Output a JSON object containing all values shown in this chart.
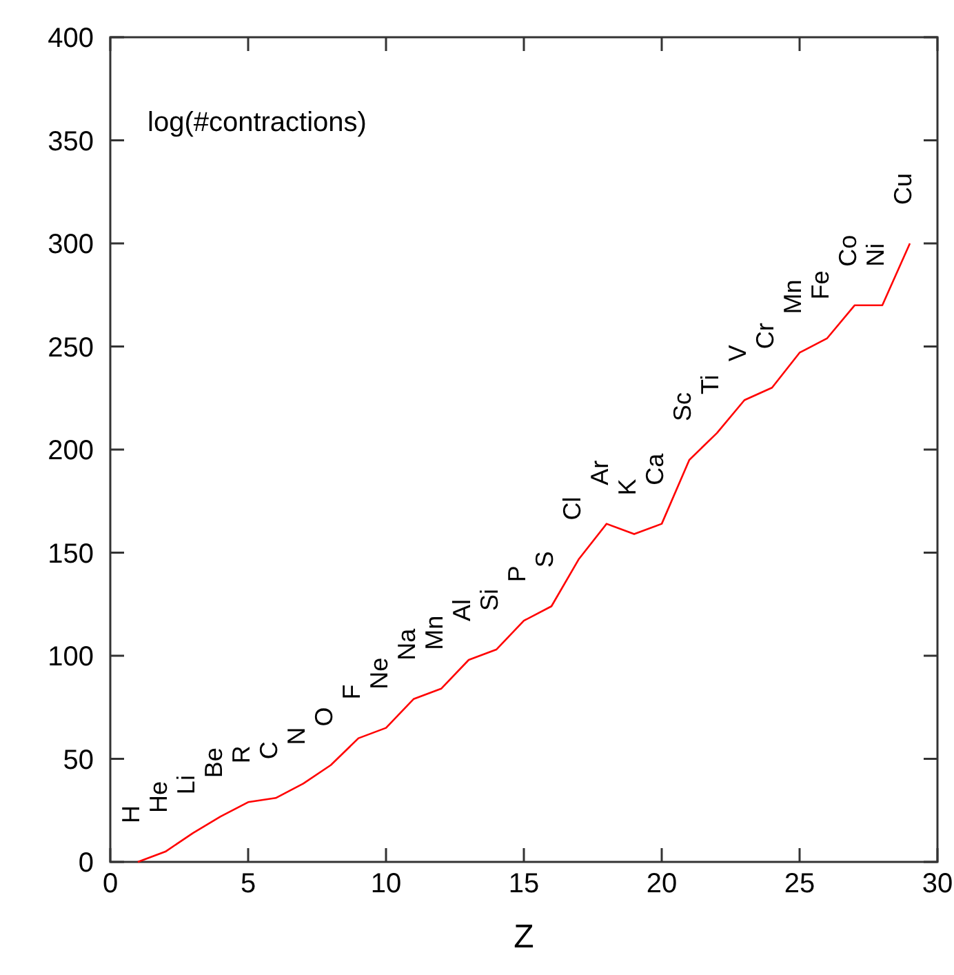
{
  "chart_data": {
    "type": "line",
    "ylabel": "log(#contractions)",
    "xlabel": "Z",
    "x": [
      1,
      2,
      3,
      4,
      5,
      6,
      7,
      8,
      9,
      10,
      11,
      12,
      13,
      14,
      15,
      16,
      17,
      18,
      19,
      20,
      21,
      22,
      23,
      24,
      25,
      26,
      27,
      28,
      29
    ],
    "series": [
      {
        "color": "#ff0000",
        "values": [
          0,
          5,
          14,
          22,
          29,
          31,
          38,
          47,
          60,
          65,
          79,
          84,
          98,
          103,
          117,
          124,
          147,
          164,
          159,
          164,
          195,
          208,
          224,
          230,
          247,
          254,
          270,
          270,
          300
        ]
      }
    ],
    "xlim": [
      0,
      30
    ],
    "ylim": [
      0,
      400
    ],
    "xticks": [
      0,
      5,
      10,
      15,
      20,
      25,
      30
    ],
    "yticks": [
      0,
      50,
      100,
      150,
      200,
      250,
      300,
      350,
      400
    ],
    "marker": "none",
    "line_style": "solid",
    "annotations": [
      {
        "text": "H",
        "x": 1,
        "y": 0
      },
      {
        "text": "He",
        "x": 2,
        "y": 5
      },
      {
        "text": "Li",
        "x": 3,
        "y": 14
      },
      {
        "text": "Be",
        "x": 4,
        "y": 22
      },
      {
        "text": "R",
        "x": 5,
        "y": 29
      },
      {
        "text": "C",
        "x": 6,
        "y": 31
      },
      {
        "text": "N",
        "x": 7,
        "y": 38
      },
      {
        "text": "O",
        "x": 8,
        "y": 47
      },
      {
        "text": "F",
        "x": 9,
        "y": 60
      },
      {
        "text": "Ne",
        "x": 10,
        "y": 65
      },
      {
        "text": "Na",
        "x": 11,
        "y": 79
      },
      {
        "text": "Mn",
        "x": 12,
        "y": 84
      },
      {
        "text": "Al",
        "x": 13,
        "y": 98
      },
      {
        "text": "Si",
        "x": 14,
        "y": 103
      },
      {
        "text": "P",
        "x": 15,
        "y": 117
      },
      {
        "text": "S",
        "x": 16,
        "y": 124
      },
      {
        "text": "Cl",
        "x": 17,
        "y": 147
      },
      {
        "text": "Ar",
        "x": 18,
        "y": 164
      },
      {
        "text": "K",
        "x": 19,
        "y": 159
      },
      {
        "text": "Ca",
        "x": 20,
        "y": 164
      },
      {
        "text": "Sc",
        "x": 21,
        "y": 195
      },
      {
        "text": "Ti",
        "x": 22,
        "y": 208
      },
      {
        "text": "V",
        "x": 23,
        "y": 224
      },
      {
        "text": "Cr",
        "x": 24,
        "y": 230
      },
      {
        "text": "Mn",
        "x": 25,
        "y": 247
      },
      {
        "text": "Fe",
        "x": 26,
        "y": 254
      },
      {
        "text": "Co",
        "x": 27,
        "y": 270
      },
      {
        "text": "Ni",
        "x": 28,
        "y": 270
      },
      {
        "text": "Cu",
        "x": 29,
        "y": 300
      }
    ]
  }
}
